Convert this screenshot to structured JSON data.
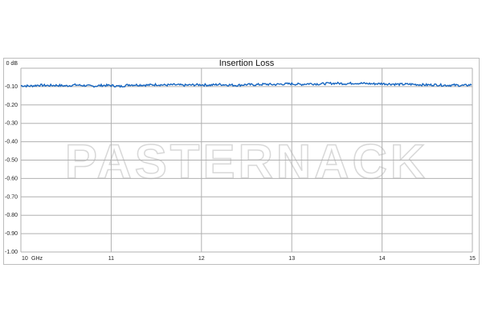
{
  "watermark": "PASTERNACK",
  "chart_data": {
    "type": "line",
    "title": "Insertion Loss",
    "xlabel": "GHz",
    "ylabel": "",
    "xlim": [
      10,
      15
    ],
    "ylim": [
      -1.0,
      0
    ],
    "grid": true,
    "x_ticks": [
      "10",
      "11",
      "12",
      "13",
      "14",
      "15"
    ],
    "y_ticks": [
      "0 dB",
      "-0.10",
      "-0.20",
      "-0.30",
      "-0.40",
      "-0.50",
      "-0.60",
      "-0.70",
      "-0.80",
      "-0.90",
      "-1.00"
    ],
    "series": [
      {
        "color": "#1565c0",
        "x_start": 10,
        "x_step": 0.1,
        "values": [
          -0.095,
          -0.097,
          -0.092,
          -0.094,
          -0.093,
          -0.096,
          -0.091,
          -0.094,
          -0.098,
          -0.093,
          -0.094,
          -0.099,
          -0.09,
          -0.091,
          -0.092,
          -0.089,
          -0.092,
          -0.09,
          -0.093,
          -0.091,
          -0.09,
          -0.092,
          -0.088,
          -0.091,
          -0.093,
          -0.089,
          -0.09,
          -0.087,
          -0.089,
          -0.086,
          -0.085,
          -0.088,
          -0.084,
          -0.086,
          -0.083,
          -0.082,
          -0.084,
          -0.081,
          -0.083,
          -0.085,
          -0.084,
          -0.086,
          -0.088,
          -0.087,
          -0.089,
          -0.091,
          -0.09,
          -0.093,
          -0.092,
          -0.094,
          -0.09
        ]
      }
    ]
  }
}
